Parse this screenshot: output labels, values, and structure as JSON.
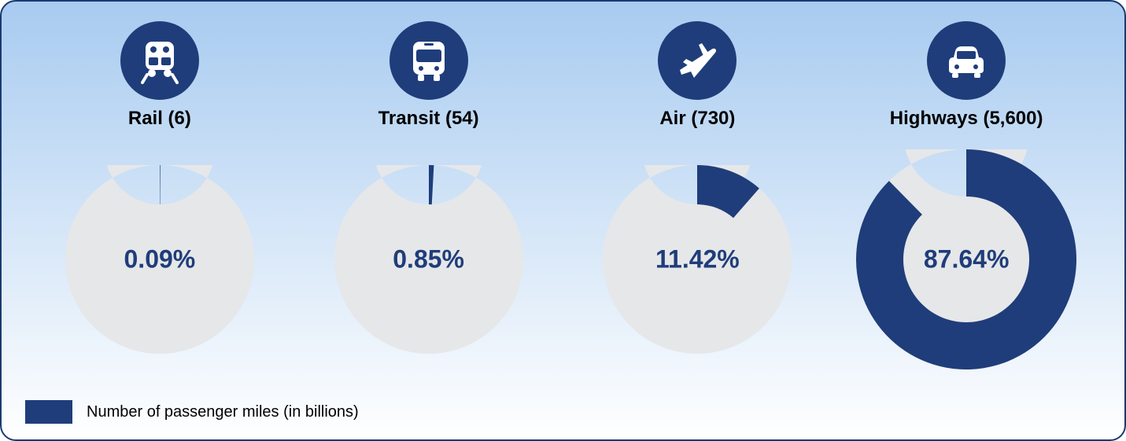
{
  "legend": {
    "text": "Number of passenger miles (in billions)"
  },
  "colors": {
    "primary": "#1f3d7a",
    "track": "#e6e7e9",
    "label_text": "#000000",
    "percent_text": "#1f3d7a"
  },
  "donut_defaults": {
    "outer_radius": 120,
    "ring_thickness": 50,
    "percent_fontsize": 32
  },
  "categories": [
    {
      "key": "rail",
      "label": "Rail (6)",
      "percent": 0.09,
      "percent_label": "0.09%",
      "icon": "train",
      "outer_radius": 120,
      "ring_thickness": 50
    },
    {
      "key": "transit",
      "label": "Transit (54)",
      "percent": 0.85,
      "percent_label": "0.85%",
      "icon": "bus",
      "outer_radius": 120,
      "ring_thickness": 50
    },
    {
      "key": "air",
      "label": "Air (730)",
      "percent": 11.42,
      "percent_label": "11.42%",
      "icon": "plane",
      "outer_radius": 120,
      "ring_thickness": 50
    },
    {
      "key": "highways",
      "label": "Highways (5,600)",
      "percent": 87.64,
      "percent_label": "87.64%",
      "icon": "car",
      "outer_radius": 140,
      "ring_thickness": 60
    }
  ]
}
